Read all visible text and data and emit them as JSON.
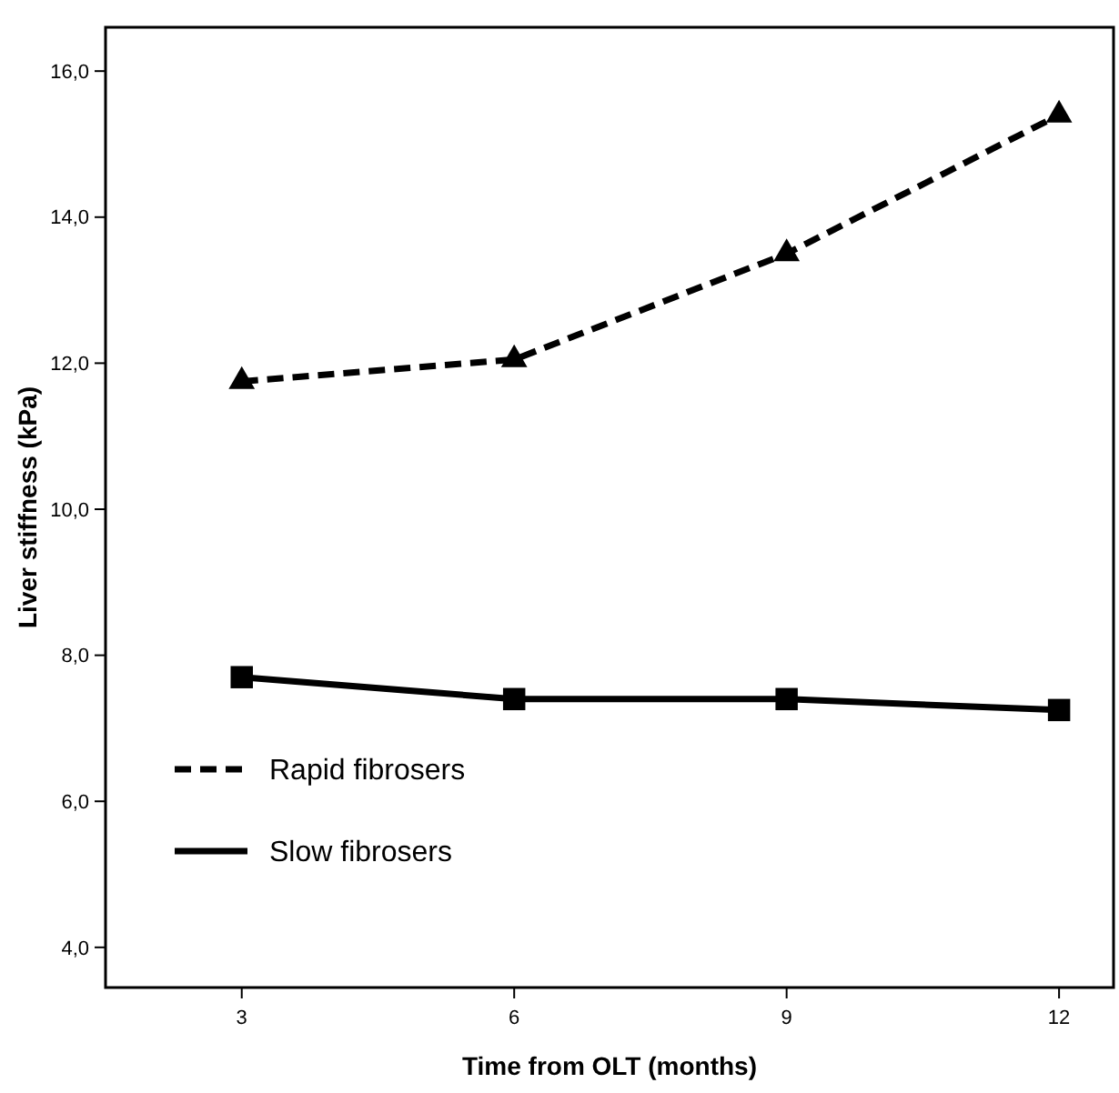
{
  "chart_data": {
    "type": "line",
    "xlabel": "Time from OLT (months)",
    "ylabel": "Liver stiffness (kPa)",
    "x": [
      3,
      6,
      9,
      12
    ],
    "series": [
      {
        "name": "Rapid fibrosers",
        "color": "#000000",
        "values": [
          11.75,
          12.05,
          13.5,
          15.4
        ],
        "line_style": "dashed",
        "marker": "triangle"
      },
      {
        "name": "Slow fibrosers",
        "color": "#000000",
        "values": [
          7.7,
          7.4,
          7.4,
          7.25
        ],
        "line_style": "solid",
        "marker": "square"
      }
    ],
    "xlim": [
      1.5,
      12.6
    ],
    "xticks": [
      3,
      6,
      9,
      12
    ],
    "ylim": [
      3.45,
      16.6
    ],
    "yticks": [
      {
        "value": 4,
        "label": "4,0"
      },
      {
        "value": 6,
        "label": "6,0"
      },
      {
        "value": 8,
        "label": "8,0"
      },
      {
        "value": 10,
        "label": "10,0"
      },
      {
        "value": 12,
        "label": "12,0"
      },
      {
        "value": 14,
        "label": "14,0"
      },
      {
        "value": 16,
        "label": "16,0"
      }
    ],
    "grid": false,
    "legend": "bottom left"
  }
}
